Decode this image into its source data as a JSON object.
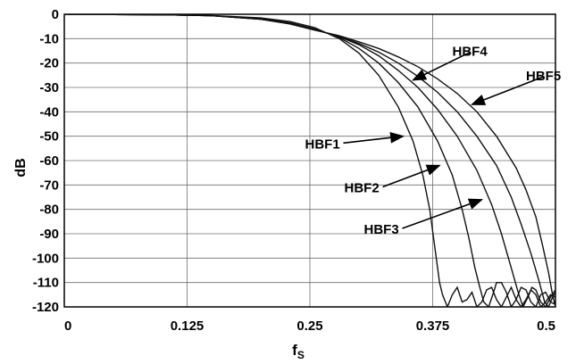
{
  "chart_data": {
    "type": "line",
    "xlabel": "f",
    "xlabel_sub": "S",
    "ylabel": "dB",
    "xlim": [
      0,
      0.5
    ],
    "ylim": [
      -120,
      0
    ],
    "grid": true,
    "xticks": [
      {
        "value": 0,
        "label": "0"
      },
      {
        "value": 0.125,
        "label": "0.125"
      },
      {
        "value": 0.25,
        "label": "0.25"
      },
      {
        "value": 0.375,
        "label": "0.375"
      },
      {
        "value": 0.5,
        "label": "0.5"
      }
    ],
    "yticks": [
      {
        "value": 0,
        "label": "0"
      },
      {
        "value": -10,
        "label": "-10"
      },
      {
        "value": -20,
        "label": "-20"
      },
      {
        "value": -30,
        "label": "-30"
      },
      {
        "value": -40,
        "label": "-40"
      },
      {
        "value": -50,
        "label": "-50"
      },
      {
        "value": -60,
        "label": "-60"
      },
      {
        "value": -70,
        "label": "-70"
      },
      {
        "value": -80,
        "label": "-80"
      },
      {
        "value": -90,
        "label": "-90"
      },
      {
        "value": -100,
        "label": "-100"
      },
      {
        "value": -110,
        "label": "-110"
      },
      {
        "value": -120,
        "label": "-120"
      }
    ],
    "series": [
      {
        "name": "HBF1",
        "x": [
          0,
          0.1,
          0.15,
          0.2,
          0.23,
          0.255,
          0.28,
          0.3,
          0.32,
          0.34,
          0.355,
          0.365,
          0.372,
          0.377,
          0.38,
          0.382,
          0.385,
          0.39,
          0.395,
          0.4,
          0.405,
          0.41,
          0.415,
          0.42,
          0.425,
          0.43,
          0.435,
          0.44,
          0.445,
          0.45,
          0.455,
          0.46,
          0.465,
          0.47,
          0.475,
          0.48,
          0.485,
          0.49,
          0.495,
          0.5
        ],
        "y": [
          0,
          -0.2,
          -0.5,
          -1.5,
          -3,
          -5.5,
          -10,
          -16,
          -25,
          -38,
          -52,
          -66,
          -80,
          -95,
          -104,
          -110,
          -115,
          -120,
          -115,
          -112,
          -118,
          -117,
          -114,
          -120,
          -118,
          -113,
          -112,
          -117,
          -120,
          -116,
          -112,
          -117,
          -120,
          -117,
          -113,
          -115,
          -120,
          -118,
          -115,
          -116
        ]
      },
      {
        "name": "HBF2",
        "x": [
          0,
          0.1,
          0.15,
          0.2,
          0.23,
          0.255,
          0.28,
          0.3,
          0.32,
          0.34,
          0.36,
          0.38,
          0.395,
          0.405,
          0.412,
          0.418,
          0.423,
          0.427,
          0.432,
          0.437,
          0.44,
          0.445,
          0.45,
          0.455,
          0.46,
          0.465,
          0.47,
          0.475,
          0.48,
          0.485,
          0.49,
          0.495,
          0.5
        ],
        "y": [
          0,
          -0.2,
          -0.6,
          -1.8,
          -3.5,
          -6,
          -9.5,
          -14,
          -20,
          -28,
          -38,
          -52,
          -66,
          -80,
          -92,
          -104,
          -112,
          -118,
          -120,
          -114,
          -110,
          -110,
          -114,
          -120,
          -117,
          -112,
          -113,
          -118,
          -120,
          -115,
          -114,
          -118,
          -119
        ]
      },
      {
        "name": "HBF3",
        "x": [
          0,
          0.1,
          0.15,
          0.2,
          0.23,
          0.255,
          0.28,
          0.3,
          0.32,
          0.34,
          0.36,
          0.38,
          0.4,
          0.42,
          0.435,
          0.445,
          0.455,
          0.462,
          0.467,
          0.472,
          0.476,
          0.48,
          0.485,
          0.49,
          0.495,
          0.5
        ],
        "y": [
          0,
          -0.2,
          -0.6,
          -2,
          -3.8,
          -6.3,
          -9.2,
          -12.5,
          -17,
          -23,
          -30,
          -39,
          -50,
          -64,
          -78,
          -90,
          -104,
          -114,
          -120,
          -116,
          -112,
          -113,
          -118,
          -120,
          -116,
          -113
        ]
      },
      {
        "name": "HBF4",
        "x": [
          0,
          0.1,
          0.15,
          0.2,
          0.23,
          0.255,
          0.28,
          0.3,
          0.32,
          0.34,
          0.36,
          0.38,
          0.4,
          0.42,
          0.44,
          0.455,
          0.465,
          0.475,
          0.483,
          0.489,
          0.493,
          0.497,
          0.5
        ],
        "y": [
          0,
          -0.2,
          -0.6,
          -2,
          -3.9,
          -6.4,
          -9,
          -12,
          -15.5,
          -20,
          -25.5,
          -32,
          -40,
          -50,
          -62,
          -75,
          -86,
          -98,
          -109,
          -118,
          -120,
          -116,
          -114
        ]
      },
      {
        "name": "HBF5",
        "x": [
          0,
          0.1,
          0.15,
          0.2,
          0.23,
          0.255,
          0.28,
          0.3,
          0.32,
          0.34,
          0.36,
          0.38,
          0.4,
          0.42,
          0.44,
          0.46,
          0.47,
          0.48,
          0.487,
          0.493,
          0.497,
          0.5
        ],
        "y": [
          0,
          -0.2,
          -0.6,
          -2,
          -4,
          -6.5,
          -8.8,
          -11.3,
          -14,
          -17.5,
          -21.5,
          -26.5,
          -32.5,
          -40,
          -50,
          -63,
          -72,
          -83,
          -95,
          -106,
          -115,
          -120
        ]
      }
    ],
    "annotations": [
      {
        "text": "HBF4",
        "x": 0.395,
        "y": -17,
        "arrow_to": [
          0.355,
          -27
        ]
      },
      {
        "text": "HBF5",
        "x": 0.47,
        "y": -27,
        "arrow_to": [
          0.415,
          -37
        ]
      },
      {
        "text": "HBF1",
        "x": 0.245,
        "y": -55,
        "arrow_to": [
          0.345,
          -50
        ]
      },
      {
        "text": "HBF2",
        "x": 0.285,
        "y": -73,
        "arrow_to": [
          0.382,
          -62
        ]
      },
      {
        "text": "HBF3",
        "x": 0.305,
        "y": -90,
        "arrow_to": [
          0.425,
          -76
        ]
      }
    ]
  }
}
